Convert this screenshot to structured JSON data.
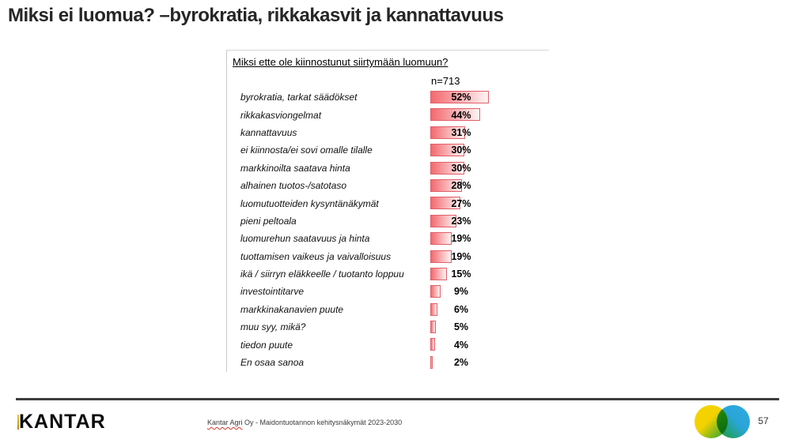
{
  "title": "Miksi ei luomua? –byrokratia, rikkakasvit ja kannattavuus",
  "chart_data": {
    "type": "bar",
    "orientation": "horizontal",
    "title": "Miksi ette ole kiinnostunut siirtymään luomuun?",
    "sample_label": "n=713",
    "unit": "%",
    "categories": [
      "byrokratia, tarkat säädökset",
      "rikkakasviongelmat",
      "kannattavuus",
      "ei kiinnosta/ei sovi omalle tilalle",
      "markkinoilta saatava hinta",
      "alhainen tuotos-/satotaso",
      "luomutuotteiden kysyntänäkymät",
      "pieni peltoala",
      "luomurehun saatavuus ja hinta",
      "tuottamisen vaikeus ja vaivalloisuus",
      "ikä / siirryn eläkkeelle / tuotanto loppuu",
      "investointitarve",
      "markkinakanavien puute",
      "muu syy, mikä?",
      "tiedon puute",
      "En osaa sanoa"
    ],
    "values": [
      52,
      44,
      31,
      30,
      30,
      28,
      27,
      23,
      19,
      19,
      15,
      9,
      6,
      5,
      4,
      2
    ],
    "xlim": [
      0,
      60
    ],
    "grid": false,
    "legend": false,
    "bar_color_start": "#f3696e",
    "bar_color_end": "#fdf4f4",
    "bar_border_color": "#e0606a"
  },
  "footer": {
    "brand": "KANTAR",
    "source_flagged": "Kantar Agri",
    "source_rest": " Oy - Maidontuotannon kehitysnäkymät 2023-2030",
    "page_number": "57",
    "logo_colors": {
      "yellow": "#f8d500",
      "green": "#23a437",
      "blue": "#2fa9e0"
    }
  }
}
